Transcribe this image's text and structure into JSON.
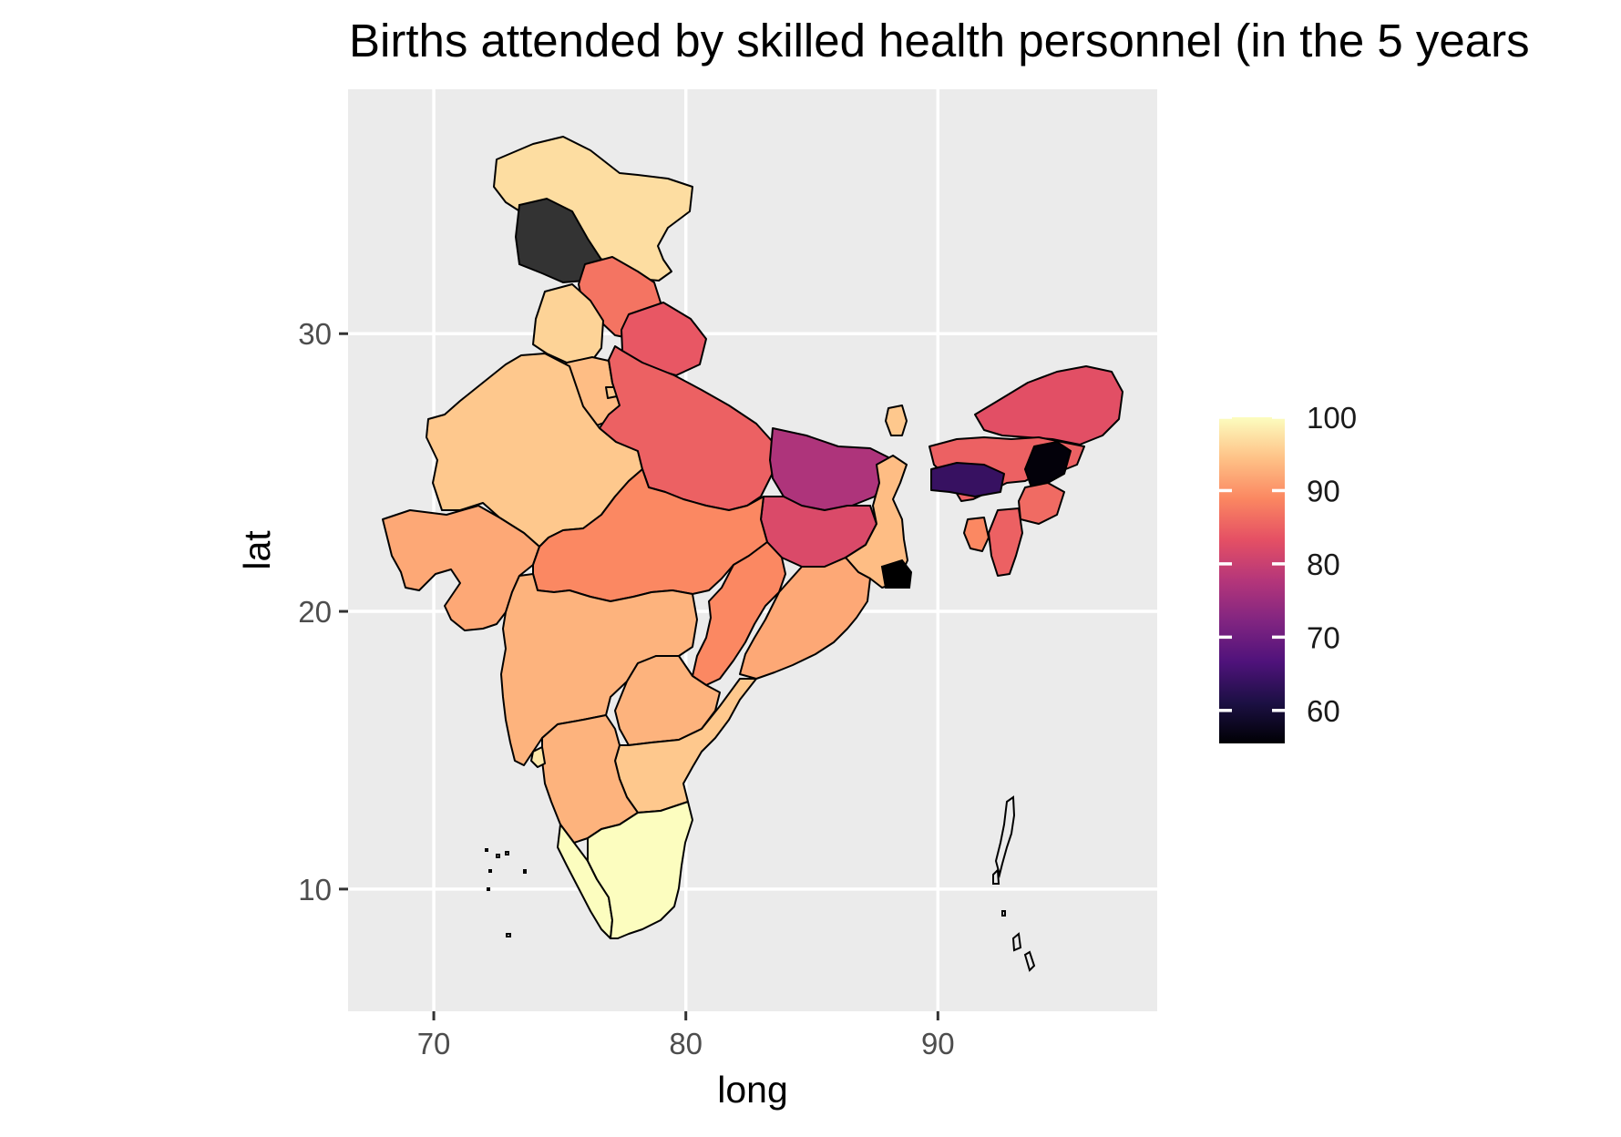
{
  "chart_data": {
    "type": "choropleth",
    "title": "Births attended by skilled health personnel (in the 5 years",
    "xlabel": "long",
    "ylabel": "lat",
    "xlim": [
      66.6,
      98.7
    ],
    "ylim": [
      5.6,
      38.8
    ],
    "x_ticks": [
      70,
      80,
      90
    ],
    "y_ticks": [
      10,
      20,
      30
    ],
    "x_tick_labels": [
      "70",
      "80",
      "90"
    ],
    "y_tick_labels": [
      "10",
      "20",
      "30"
    ],
    "legend": {
      "position": "right",
      "palette": "magma",
      "range": [
        55.5,
        100
      ],
      "breaks": [
        60,
        70,
        80,
        90,
        100
      ],
      "break_labels": [
        "60",
        "70",
        "80",
        "90",
        "100"
      ]
    },
    "regions": [
      {
        "name": "Jammu and Kashmir",
        "value": 97
      },
      {
        "name": "Himachal Pradesh",
        "value": 87
      },
      {
        "name": "Punjab",
        "value": 96
      },
      {
        "name": "Haryana",
        "value": 94
      },
      {
        "name": "Uttarakhand",
        "value": 84
      },
      {
        "name": "Rajasthan",
        "value": 95
      },
      {
        "name": "Uttar Pradesh",
        "value": 85
      },
      {
        "name": "Bihar",
        "value": 77
      },
      {
        "name": "Sikkim",
        "value": 95
      },
      {
        "name": "Arunachal Pradesh",
        "value": 83
      },
      {
        "name": "Assam",
        "value": 85
      },
      {
        "name": "Meghalaya",
        "value": 64
      },
      {
        "name": "Nagaland",
        "value": 56
      },
      {
        "name": "Manipur",
        "value": 86
      },
      {
        "name": "Mizoram",
        "value": 85
      },
      {
        "name": "Tripura",
        "value": 89
      },
      {
        "name": "Jharkhand",
        "value": 82
      },
      {
        "name": "West Bengal",
        "value": 94
      },
      {
        "name": "Gujarat",
        "value": 92
      },
      {
        "name": "Madhya Pradesh",
        "value": 89
      },
      {
        "name": "Chhattisgarh",
        "value": 89
      },
      {
        "name": "Odisha",
        "value": 92
      },
      {
        "name": "Maharashtra",
        "value": 93
      },
      {
        "name": "Telangana",
        "value": 93
      },
      {
        "name": "Andhra Pradesh",
        "value": 95
      },
      {
        "name": "Karnataka",
        "value": 93
      },
      {
        "name": "Goa",
        "value": 98
      },
      {
        "name": "Kerala",
        "value": 100
      },
      {
        "name": "Tamil Nadu",
        "value": 100
      },
      {
        "name": "Delhi",
        "value": 95
      }
    ]
  }
}
